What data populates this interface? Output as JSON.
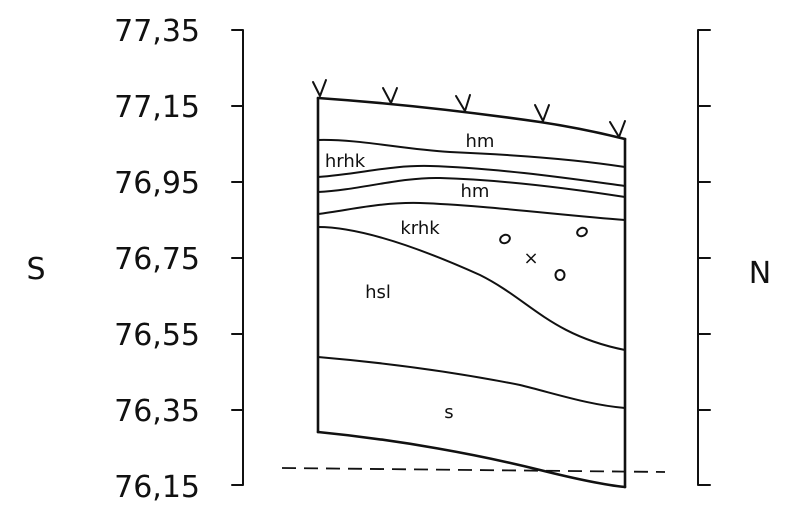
{
  "profile": {
    "left_side_label": "S",
    "right_side_label": "N",
    "elevation_ticks": [
      "77,35",
      "77,15",
      "76,95",
      "76,75",
      "76,55",
      "76,35",
      "76,15"
    ],
    "layers": [
      {
        "id": "hm-upper",
        "label": "hm"
      },
      {
        "id": "hrhk",
        "label": "hrhk"
      },
      {
        "id": "hm-lower",
        "label": "hm"
      },
      {
        "id": "krhk",
        "label": "krhk"
      },
      {
        "id": "hsl",
        "label": "hsl"
      },
      {
        "id": "s",
        "label": "s"
      }
    ],
    "symbols": {
      "stones": 3,
      "cross": "×"
    },
    "water_level": "dashed"
  }
}
